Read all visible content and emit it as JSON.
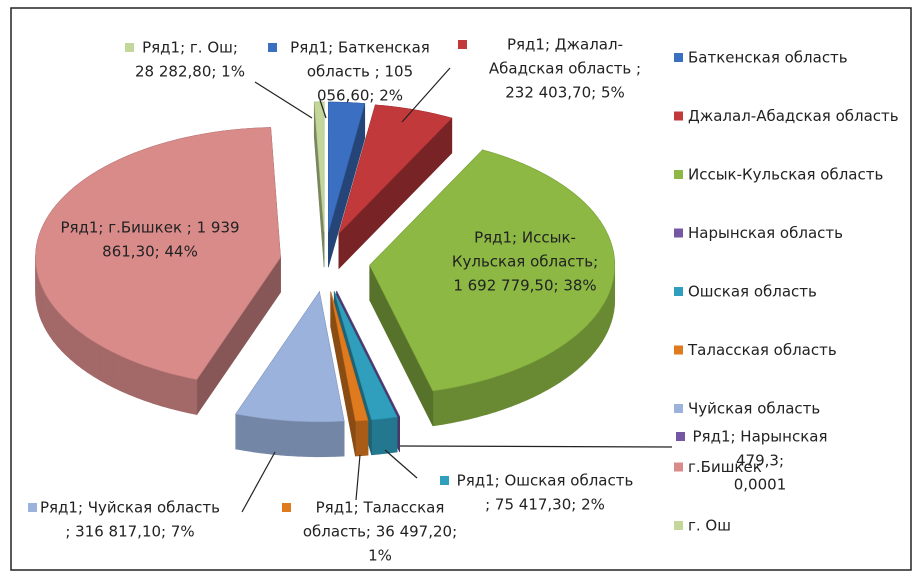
{
  "chart_data": {
    "type": "pie3d",
    "categories": [
      "Баткенская область",
      "Джалал-Абадская область",
      "Иссык-Кульская область",
      "Нарынская область",
      "Ошская область",
      "Таласская область",
      "Чуйская область",
      "г.Бишкек",
      "г. Ош"
    ],
    "values": [
      105056.6,
      232403.7,
      1692779.5,
      479.3,
      75417.3,
      36497.2,
      316817.1,
      1939861.3,
      28282.8
    ],
    "value_labels": [
      [
        "Ряд1; Баткенская",
        "область ; 105",
        "056,60; 2%"
      ],
      [
        "Ряд1; Джалал-",
        "Абадская область ;",
        "232 403,70; 5%"
      ],
      [
        "Ряд1; Иссык-",
        "Кульская область;",
        "1 692 779,50; 38%"
      ],
      [
        "Ряд1; Нарынская",
        "479,3;",
        "0,0001"
      ],
      [
        "Ряд1; Ошская область",
        "; 75 417,30; 2%"
      ],
      [
        "Ряд1; Таласская",
        "область; 36 497,20;",
        "1%"
      ],
      [
        "Ряд1; Чуйская область",
        "; 316 817,10; 7%"
      ],
      [
        "Ряд1; г.Бишкек ; 1 939",
        "861,30; 44%"
      ],
      [
        "Ряд1; г. Ош;",
        "28 282,80; 1%"
      ]
    ],
    "colors": [
      "#3b6fc2",
      "#c2393b",
      "#8cb843",
      "#7657a3",
      "#2f9fbd",
      "#e07a1f",
      "#9bb2dc",
      "#d98b8a",
      "#c3d79a"
    ],
    "legend": "right"
  }
}
